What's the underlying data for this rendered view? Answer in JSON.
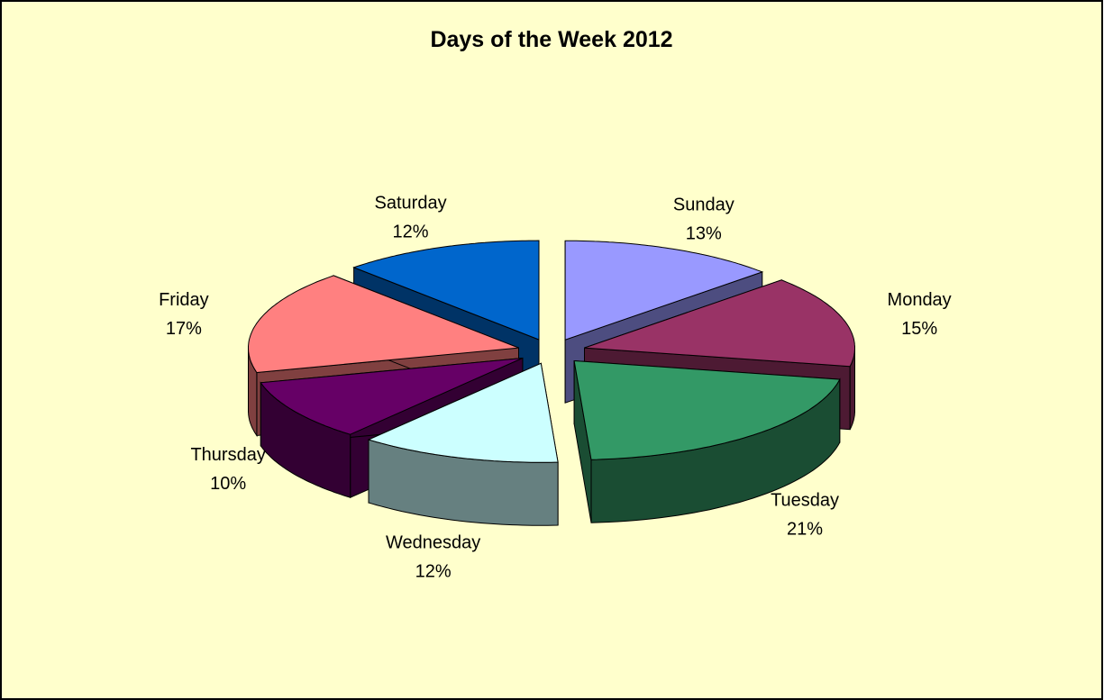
{
  "chart_data": {
    "type": "pie",
    "title": "Days of the Week 2012",
    "categories": [
      "Sunday",
      "Monday",
      "Tuesday",
      "Wednesday",
      "Thursday",
      "Friday",
      "Saturday"
    ],
    "values": [
      13,
      15,
      21,
      12,
      10,
      17,
      12
    ],
    "value_labels": [
      "13%",
      "15%",
      "21%",
      "12%",
      "10%",
      "17%",
      "12%"
    ],
    "colors": [
      "#9999ff",
      "#993366",
      "#339966",
      "#ccffff",
      "#660066",
      "#ff8080",
      "#0066cc"
    ],
    "exploded": true,
    "three_d": true
  }
}
